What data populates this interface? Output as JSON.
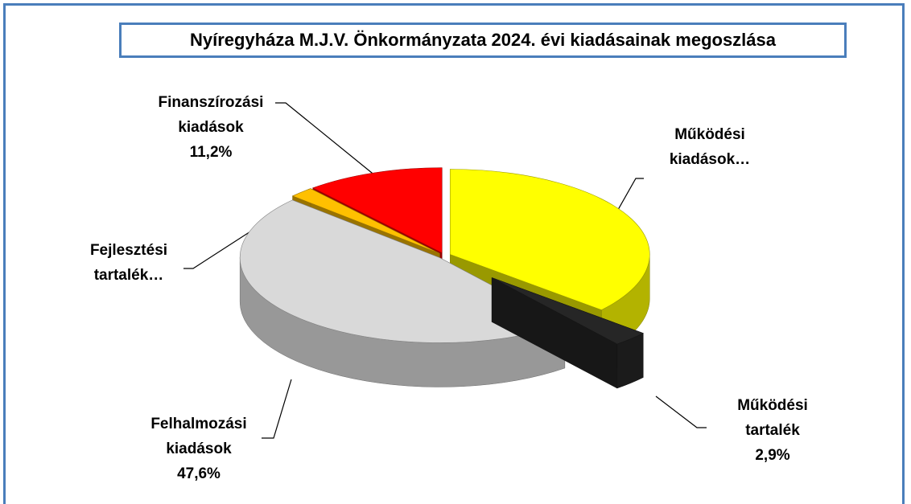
{
  "chart_data": {
    "type": "pie3d",
    "title": "Nyíregyháza M.J.V. Önkormányzata 2024. évi kiadásainak megoszlása",
    "categories": [
      "Működési kiadások…",
      "Működési tartalék",
      "Felhalmozási kiadások",
      "Fejlesztési tartalék…",
      "Finanszírozási kiadások"
    ],
    "values": [
      36.3,
      2.9,
      47.6,
      2.0,
      11.2
    ],
    "value_labels": [
      null,
      "2,9%",
      "47,6%",
      null,
      "11,2%"
    ],
    "colors": [
      "#ffff00",
      "#262626",
      "#d9d9d9",
      "#ffc000",
      "#ff0000"
    ]
  }
}
